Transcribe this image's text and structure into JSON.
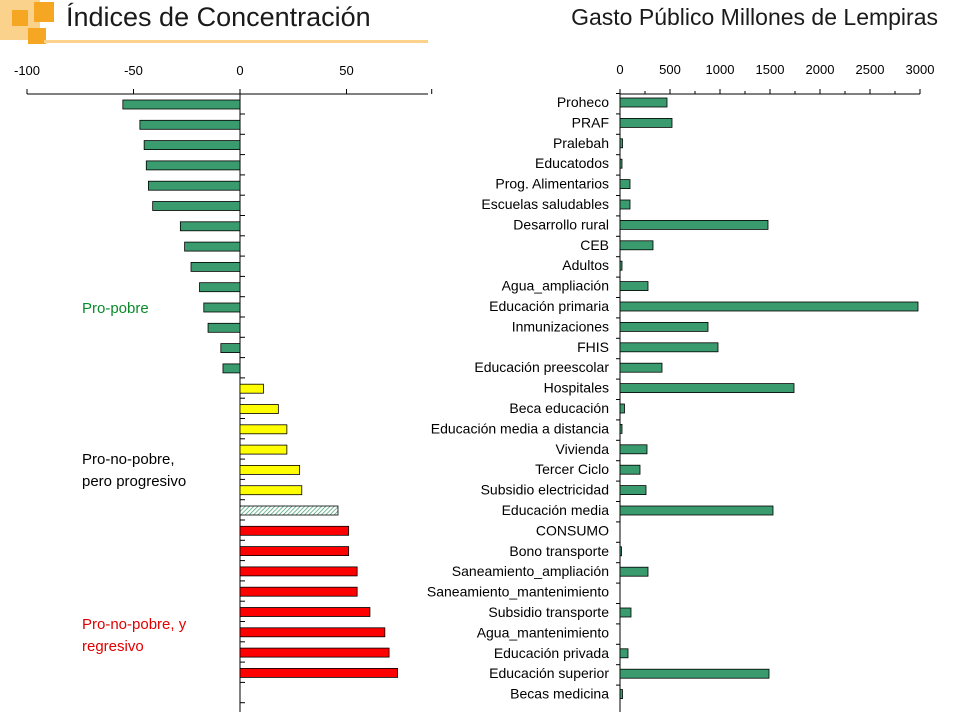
{
  "header": {
    "left_title": "Índices de Concentración",
    "right_title": "Gasto Público Millones de Lempiras"
  },
  "colors": {
    "accent_orange": "#f5a623",
    "accent_light": "#fbd28c",
    "bar_green": "#3a9b6e",
    "bar_yellow": "#ffff00",
    "bar_red": "#ff0000",
    "bar_hatched": "#cfe8d8",
    "group_green": "#0a8a2a",
    "group_black": "#000000",
    "group_red": "#e00000"
  },
  "chart_data": [
    {
      "type": "bar",
      "orientation": "horizontal",
      "xlim": [
        -100,
        90
      ],
      "xticks": [
        -100,
        -50,
        0,
        50
      ],
      "values": [
        -55,
        -47,
        -45,
        -44,
        -43,
        -41,
        -28,
        -26,
        -23,
        -19,
        -17,
        -15,
        -9,
        -8,
        11,
        18,
        22,
        22,
        28,
        29,
        46,
        51,
        51,
        55,
        55,
        61,
        68,
        70,
        74
      ],
      "groups": [
        {
          "label": "Pro-pobre",
          "color_key": "group_green"
        },
        {
          "label_lines": [
            "Pro-no-pobre,",
            "pero  progresivo"
          ],
          "color_key": "group_black"
        },
        {
          "label_lines": [
            "Pro-no-pobre, y",
            "regresivo"
          ],
          "color_key": "group_red"
        }
      ],
      "bar_colors": [
        "green",
        "green",
        "green",
        "green",
        "green",
        "green",
        "green",
        "green",
        "green",
        "green",
        "green",
        "green",
        "green",
        "green",
        "yellow",
        "yellow",
        "yellow",
        "yellow",
        "yellow",
        "yellow",
        "hatched",
        "red",
        "red",
        "red",
        "red",
        "red",
        "red",
        "red",
        "red"
      ]
    },
    {
      "type": "bar",
      "orientation": "horizontal",
      "xlim": [
        0,
        3000
      ],
      "xticks": [
        0,
        500,
        1000,
        1500,
        2000,
        2500,
        3000
      ],
      "categories": [
        "Proheco",
        "PRAF",
        "Pralebah",
        "Educatodos",
        "Prog. Alimentarios",
        "Escuelas saludables",
        "Desarrollo rural",
        "CEB",
        "Adultos",
        "Agua_ampliación",
        "Educación primaria",
        "Inmunizaciones",
        "FHIS",
        "Educación preescolar",
        "Hospitales",
        "Beca educación",
        "Educación media a distancia",
        "Vivienda",
        "Tercer Ciclo",
        "Subsidio electricidad",
        "Educación media",
        "CONSUMO",
        "Bono transporte",
        "Saneamiento_ampliación",
        "Saneamiento_mantenimiento",
        "Subsidio transporte",
        "Agua_mantenimiento",
        "Educación privada",
        "Educación superior",
        "Becas medicina"
      ],
      "values": [
        470,
        520,
        25,
        20,
        100,
        100,
        1480,
        330,
        20,
        280,
        2980,
        880,
        980,
        420,
        1740,
        45,
        20,
        270,
        200,
        260,
        1530,
        0,
        15,
        280,
        0,
        110,
        0,
        80,
        1490,
        25
      ]
    }
  ]
}
